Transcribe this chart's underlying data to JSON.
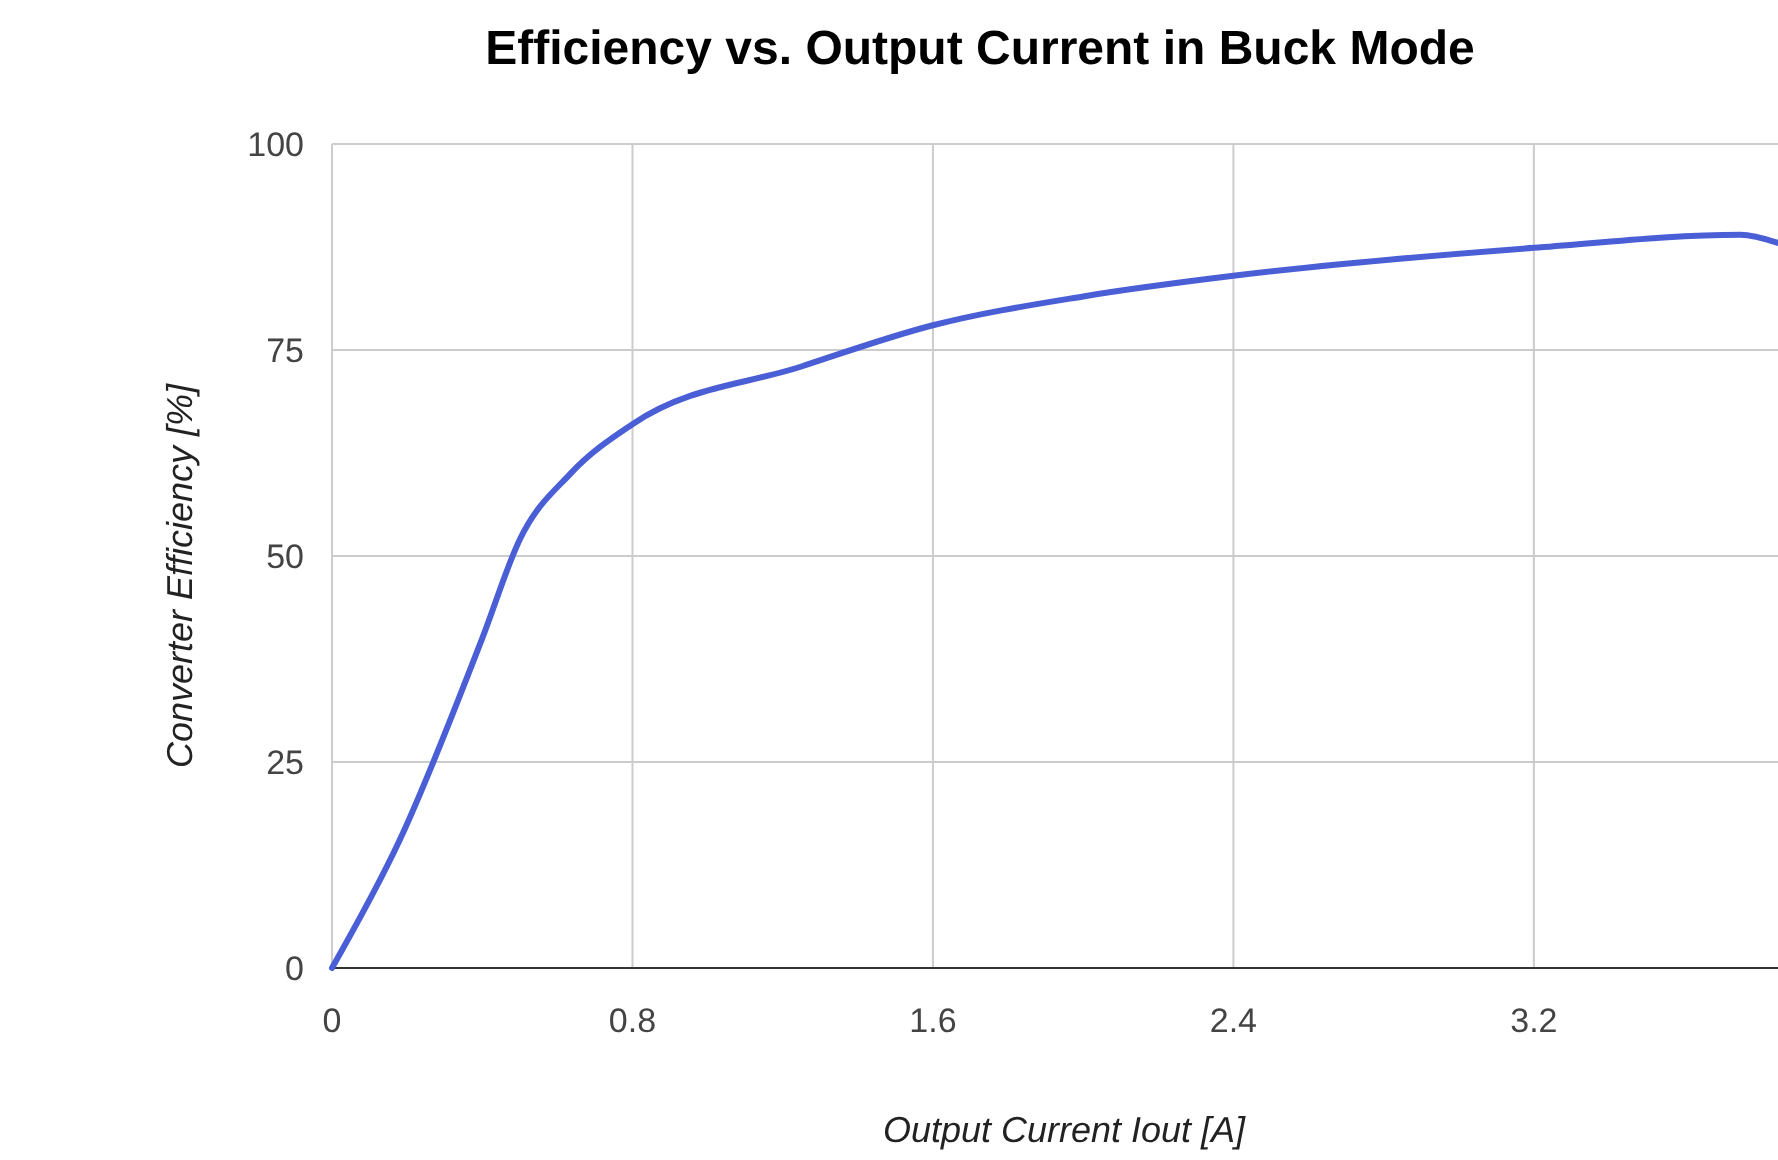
{
  "chart_data": {
    "type": "line",
    "title": "Efficiency vs. Output Current in Buck Mode",
    "xlabel": "Output Current Iout [A]",
    "ylabel": "Converter Efficiency [%]",
    "x": [
      0,
      0.18,
      0.4,
      0.5,
      0.635,
      0.8,
      1.25,
      1.6,
      2.0,
      2.4,
      3.2,
      3.75,
      3.85
    ],
    "series": [
      {
        "color": "#4a5fd6",
        "values": [
          0,
          15.5,
          40,
          52,
          60,
          66,
          73,
          78,
          81.5,
          84,
          87.4,
          89,
          88
        ]
      }
    ],
    "xlim": [
      0,
      3.85
    ],
    "ylim": [
      0,
      100
    ],
    "xticks": [
      0,
      0.8,
      1.6,
      2.4,
      3.2
    ],
    "yticks": [
      0,
      25,
      50,
      75,
      100
    ],
    "grid": true,
    "marker": "none",
    "line_style": "solid"
  }
}
